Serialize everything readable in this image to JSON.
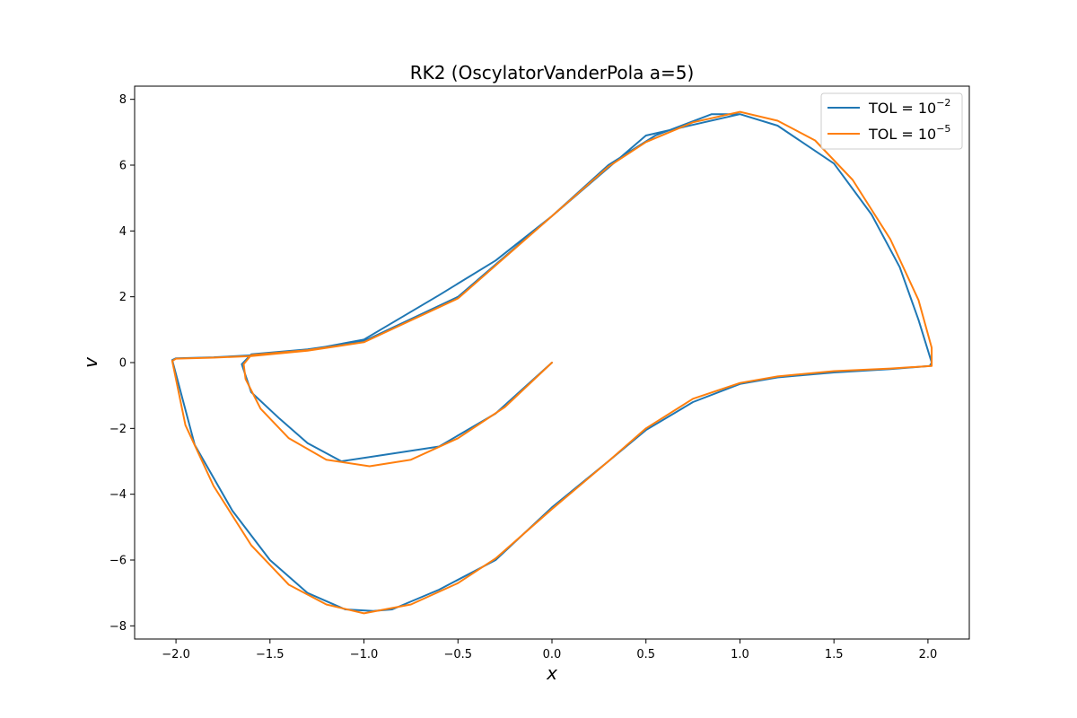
{
  "chart_data": {
    "type": "line",
    "title": "RK2 (OscylatorVanderPola a=5)",
    "xlabel": "x",
    "ylabel": "v",
    "xlim": [
      -2.22,
      2.22
    ],
    "ylim": [
      -8.4,
      8.4
    ],
    "x_ticks": [
      -2.0,
      -1.5,
      -1.0,
      -0.5,
      0.0,
      0.5,
      1.0,
      1.5,
      2.0
    ],
    "x_tick_labels": [
      "−2.0",
      "−1.5",
      "−1.0",
      "−0.5",
      "0.0",
      "0.5",
      "1.0",
      "1.5",
      "2.0"
    ],
    "y_ticks": [
      -8,
      -6,
      -4,
      -2,
      0,
      2,
      4,
      6,
      8
    ],
    "y_tick_labels": [
      "−8",
      "−6",
      "−4",
      "−2",
      "0",
      "2",
      "4",
      "6",
      "8"
    ],
    "grid": false,
    "legend_position": "top-right",
    "series": [
      {
        "name": "TOL = 10^-2",
        "legend_base": "TOL = 10",
        "legend_exp": "−2",
        "color": "#1f77b4",
        "x": [
          0.0,
          -0.3,
          -0.6,
          -1.12,
          -1.3,
          -1.45,
          -1.6,
          -1.65,
          -1.6,
          -1.3,
          -1.0,
          -0.5,
          0.0,
          0.3,
          0.55,
          0.85,
          1.0,
          1.2,
          1.5,
          1.7,
          1.85,
          1.95,
          2.02,
          2.01,
          1.8,
          1.5,
          1.2,
          1.0,
          0.75,
          0.5,
          0.3,
          0.0,
          -0.3,
          -0.6,
          -0.85,
          -0.95,
          -1.1,
          -1.3,
          -1.5,
          -1.7,
          -1.9,
          -2.02,
          -2.0,
          -1.8,
          -1.6,
          -1.3,
          -1.0,
          -0.6,
          -0.3,
          0.0,
          0.5,
          1.0
        ],
        "y": [
          0.0,
          -1.55,
          -2.55,
          -3.0,
          -2.45,
          -1.7,
          -0.9,
          -0.05,
          0.25,
          0.4,
          0.65,
          2.0,
          4.45,
          6.0,
          6.9,
          7.55,
          7.55,
          7.2,
          6.05,
          4.5,
          2.9,
          1.3,
          0.0,
          -0.1,
          -0.2,
          -0.3,
          -0.45,
          -0.65,
          -1.2,
          -2.05,
          -3.0,
          -4.4,
          -6.0,
          -6.9,
          -7.5,
          -7.55,
          -7.5,
          -7.0,
          -6.0,
          -4.5,
          -2.5,
          0.08,
          0.13,
          0.16,
          0.22,
          0.38,
          0.7,
          2.05,
          3.1,
          4.45,
          6.9,
          7.55
        ]
      },
      {
        "name": "TOL = 10^-5",
        "legend_base": "TOL = 10",
        "legend_exp": "−5",
        "color": "#ff7f0e",
        "x": [
          0.0,
          -0.25,
          -0.5,
          -0.75,
          -0.97,
          -1.2,
          -1.4,
          -1.55,
          -1.63,
          -1.64,
          -1.6,
          -1.3,
          -1.0,
          -0.5,
          0.0,
          0.3,
          0.5,
          0.75,
          1.0,
          1.2,
          1.4,
          1.6,
          1.8,
          1.95,
          2.02,
          2.02,
          1.8,
          1.5,
          1.2,
          1.0,
          0.75,
          0.5,
          0.3,
          0.0,
          -0.3,
          -0.5,
          -0.75,
          -1.0,
          -1.2,
          -1.4,
          -1.6,
          -1.8,
          -1.95,
          -2.02,
          -2.0,
          -1.8,
          -1.6,
          -1.3,
          -1.0,
          -0.5,
          0.0,
          0.3,
          0.5,
          0.75,
          1.0
        ],
        "y": [
          0.0,
          -1.35,
          -2.3,
          -2.95,
          -3.15,
          -2.95,
          -2.3,
          -1.4,
          -0.5,
          -0.05,
          0.23,
          0.38,
          0.62,
          1.95,
          4.45,
          5.95,
          6.7,
          7.3,
          7.62,
          7.35,
          6.75,
          5.55,
          3.75,
          1.9,
          0.45,
          -0.1,
          -0.18,
          -0.26,
          -0.42,
          -0.62,
          -1.1,
          -2.0,
          -3.0,
          -4.45,
          -5.95,
          -6.7,
          -7.35,
          -7.62,
          -7.35,
          -6.75,
          -5.55,
          -3.75,
          -1.9,
          0.05,
          0.12,
          0.15,
          0.2,
          0.36,
          0.62,
          1.95,
          4.45,
          5.95,
          6.7,
          7.3,
          7.62
        ]
      }
    ]
  }
}
